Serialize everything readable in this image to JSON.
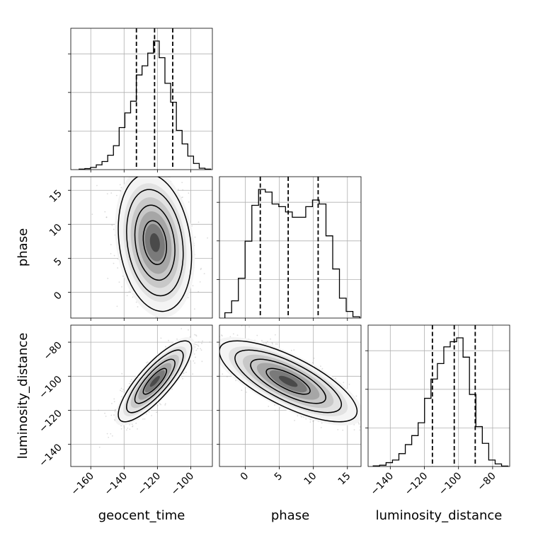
{
  "chart_data": {
    "type": "corner",
    "parameters": [
      "geocent_time",
      "phase",
      "luminosity_distance"
    ],
    "xlabels": [
      "geocent_time",
      "phase",
      "luminosity_distance"
    ],
    "ylabels": [
      "",
      "phase",
      "luminosity_distance"
    ],
    "axes": {
      "geocent_time": {
        "range": [
          -172,
          -87
        ],
        "ticks": [
          -160,
          -140,
          -120,
          -100
        ]
      },
      "phase": {
        "range": [
          -3.8,
          17.0
        ],
        "ticks": [
          0,
          5,
          10,
          15
        ]
      },
      "luminosity_distance": {
        "range": [
          -153,
          -70
        ],
        "ticks": [
          -140,
          -120,
          -100,
          -80
        ]
      }
    },
    "histograms": {
      "geocent_time": {
        "quantiles": [
          -132.6,
          -121.7,
          -110.8
        ],
        "counts": [
          0.004,
          0.008,
          0.017,
          0.037,
          0.063,
          0.112,
          0.186,
          0.327,
          0.441,
          0.532,
          0.736,
          0.807,
          0.906,
          1.0,
          0.87,
          0.671,
          0.524,
          0.305,
          0.2,
          0.105,
          0.048,
          0.011,
          0.004
        ],
        "bin_range": [
          -167,
          -88
        ]
      },
      "phase": {
        "quantiles": [
          2.2,
          6.3,
          10.7
        ],
        "counts": [
          0.04,
          0.13,
          0.3,
          0.58,
          0.85,
          0.97,
          0.95,
          0.86,
          0.84,
          0.8,
          0.76,
          0.76,
          0.84,
          0.89,
          0.86,
          0.62,
          0.37,
          0.15,
          0.05,
          0.01
        ],
        "bin_range": [
          -3.0,
          16.8
        ]
      },
      "luminosity_distance": {
        "quantiles": [
          -115.3,
          -102.5,
          -90.2
        ],
        "counts": [
          0.005,
          0.01,
          0.03,
          0.05,
          0.1,
          0.17,
          0.24,
          0.34,
          0.53,
          0.68,
          0.8,
          0.93,
          0.97,
          1.0,
          0.85,
          0.56,
          0.31,
          0.18,
          0.05,
          0.02,
          0.003
        ],
        "bin_range": [
          -150,
          -71
        ]
      }
    },
    "joint": [
      {
        "x": "geocent_time",
        "y": "phase",
        "center": [
          -121.5,
          7.3
        ],
        "sigma": [
          10.0,
          4.6
        ],
        "correlation": -0.2
      },
      {
        "x": "geocent_time",
        "y": "luminosity_distance",
        "center": [
          -121.5,
          -103.0
        ],
        "sigma": [
          10.0,
          10.8
        ],
        "correlation": 0.82
      },
      {
        "x": "phase",
        "y": "luminosity_distance",
        "center": [
          6.3,
          -103.0
        ],
        "sigma": [
          4.6,
          10.8
        ],
        "correlation": -0.74
      }
    ],
    "grid": true,
    "colors": {
      "points": "#9a9a9a",
      "lines": "#000000",
      "grid": "#b0b0b0"
    }
  }
}
